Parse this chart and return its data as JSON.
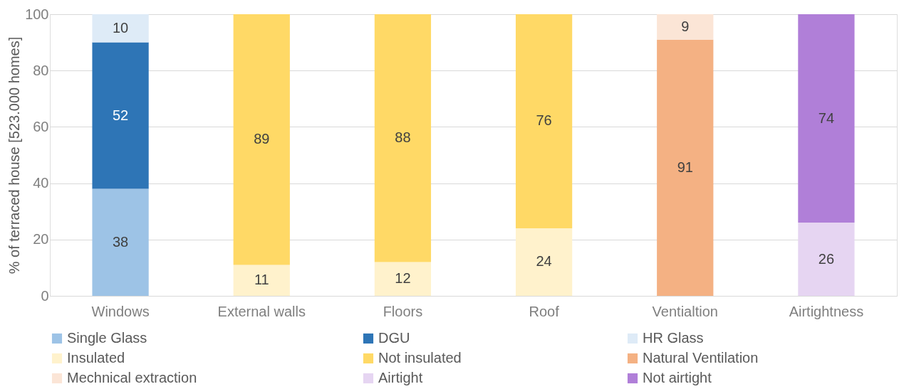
{
  "chart_data": {
    "type": "bar",
    "stacked": true,
    "ylabel": "% of terraced house [523.000 homes]",
    "categories": [
      "Windows",
      "External walls",
      "Floors",
      "Roof",
      "Ventialtion",
      "Airtightness"
    ],
    "series": [
      {
        "name": "Single Glass",
        "color": "#9dc3e6",
        "values": [
          38,
          null,
          null,
          null,
          null,
          null
        ]
      },
      {
        "name": "DGU",
        "color": "#2e75b6",
        "values": [
          52,
          null,
          null,
          null,
          null,
          null
        ]
      },
      {
        "name": "HR Glass",
        "color": "#deebf7",
        "values": [
          10,
          null,
          null,
          null,
          null,
          null
        ]
      },
      {
        "name": "Insulated",
        "color": "#fff2cc",
        "values": [
          null,
          11,
          12,
          24,
          null,
          null
        ]
      },
      {
        "name": "Not insulated",
        "color": "#ffd966",
        "values": [
          null,
          89,
          88,
          76,
          null,
          null
        ]
      },
      {
        "name": "Natural Ventilation",
        "color": "#f4b183",
        "values": [
          null,
          null,
          null,
          null,
          91,
          null
        ]
      },
      {
        "name": "Mechnical extraction",
        "color": "#fbe5d6",
        "values": [
          null,
          null,
          null,
          null,
          9,
          null
        ]
      },
      {
        "name": "Airtight",
        "color": "#e6d5f2",
        "values": [
          null,
          null,
          null,
          null,
          null,
          26
        ]
      },
      {
        "name": "Not airtight",
        "color": "#b07fd8",
        "values": [
          null,
          null,
          null,
          null,
          null,
          74
        ]
      }
    ],
    "ylim": [
      0,
      100
    ],
    "yticks": [
      0,
      20,
      40,
      60,
      80,
      100
    ],
    "grid": "y",
    "legend": "bottom",
    "data_labels": true
  }
}
